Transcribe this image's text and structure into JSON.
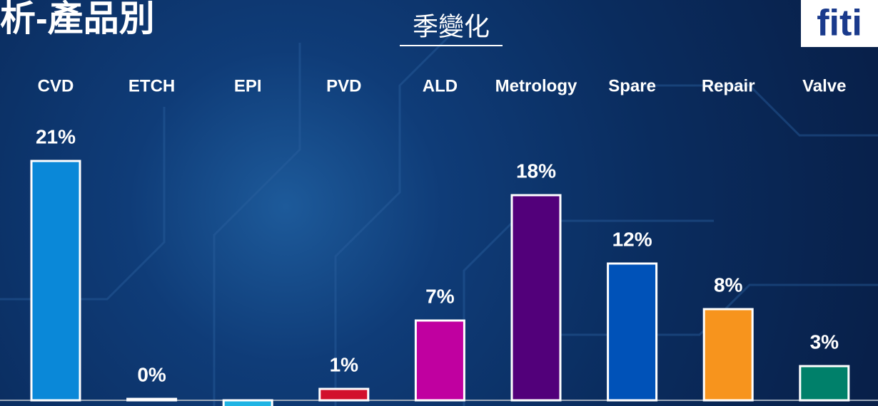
{
  "header": {
    "title": "析-產品別",
    "subtitle": "季變化",
    "logo": "fiti"
  },
  "chart_data": {
    "type": "bar",
    "categories": [
      "CVD",
      "ETCH",
      "EPI",
      "PVD",
      "ALD",
      "Metrology",
      "Spare",
      "Repair",
      "Valve"
    ],
    "values": [
      21,
      0,
      -1,
      1,
      7,
      18,
      12,
      8,
      3
    ],
    "value_labels": [
      "21%",
      "0%",
      null,
      "1%",
      "7%",
      "18%",
      "12%",
      "8%",
      "3%"
    ],
    "colors": [
      "#0a88d8",
      "#ffffff",
      "#1fb4e4",
      "#d2102c",
      "#c000a0",
      "#52007a",
      "#0052b8",
      "#f7941d",
      "#00806a"
    ]
  }
}
